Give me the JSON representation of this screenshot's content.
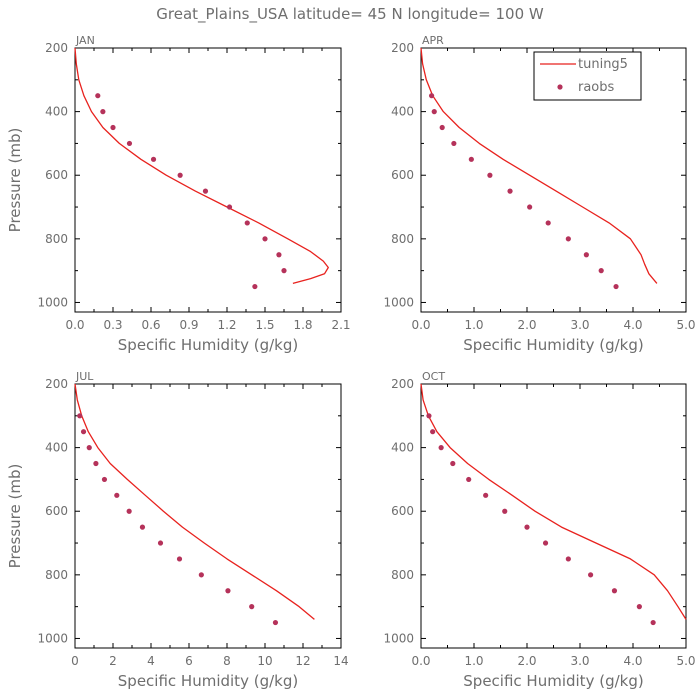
{
  "title": "Great_Plains_USA   latitude= 45 N longitude= 100 W",
  "legend": {
    "model_label": "tuning5",
    "obs_label": "raobs"
  },
  "colors": {
    "model_line": "#e8221e",
    "obs_marker": "#b5325a",
    "axis": "#000000",
    "text": "#6e6e6e"
  },
  "chart_data": [
    {
      "type": "line",
      "panel": "JAN",
      "xlabel": "Specific Humidity (g/kg)",
      "ylabel": "Pressure (mb)",
      "xlim": [
        0,
        2.1
      ],
      "ylim": [
        1030,
        200
      ],
      "xticks": [
        "0.0",
        "0.3",
        "0.6",
        "0.9",
        "1.2",
        "1.5",
        "1.8",
        "2.1"
      ],
      "xtick_values": [
        0,
        0.3,
        0.6,
        0.9,
        1.2,
        1.5,
        1.8,
        2.1
      ],
      "yticks": [
        "200",
        "400",
        "600",
        "800",
        "1000"
      ],
      "ytick_values": [
        200,
        400,
        600,
        800,
        1000
      ],
      "series": [
        {
          "name": "tuning5",
          "kind": "line",
          "x": [
            0.0,
            0.01,
            0.03,
            0.07,
            0.13,
            0.22,
            0.35,
            0.52,
            0.72,
            0.95,
            1.2,
            1.45,
            1.68,
            1.86,
            1.96,
            2.0,
            1.97,
            1.86,
            1.72
          ],
          "y": [
            200,
            250,
            300,
            350,
            400,
            450,
            500,
            550,
            600,
            650,
            700,
            750,
            800,
            840,
            870,
            890,
            910,
            925,
            940
          ]
        },
        {
          "name": "raobs",
          "kind": "scatter",
          "x": [
            0.18,
            0.22,
            0.3,
            0.43,
            0.62,
            0.83,
            1.03,
            1.22,
            1.36,
            1.5,
            1.61,
            1.65,
            1.42
          ],
          "y": [
            350,
            400,
            450,
            500,
            550,
            600,
            650,
            700,
            750,
            800,
            850,
            900,
            950
          ]
        }
      ]
    },
    {
      "type": "line",
      "panel": "APR",
      "xlabel": "Specific Humidity (g/kg)",
      "ylabel": "",
      "xlim": [
        0,
        5.0
      ],
      "ylim": [
        1030,
        200
      ],
      "xticks": [
        "0.0",
        "1.0",
        "2.0",
        "3.0",
        "4.0",
        "5.0"
      ],
      "xtick_values": [
        0,
        1,
        2,
        3,
        4,
        5
      ],
      "yticks": [
        "200",
        "400",
        "600",
        "800",
        "1000"
      ],
      "ytick_values": [
        200,
        400,
        600,
        800,
        1000
      ],
      "series": [
        {
          "name": "tuning5",
          "kind": "line",
          "x": [
            0.0,
            0.03,
            0.1,
            0.22,
            0.42,
            0.72,
            1.1,
            1.55,
            2.05,
            2.55,
            3.05,
            3.55,
            3.95,
            4.15,
            4.22,
            4.3,
            4.45
          ],
          "y": [
            200,
            250,
            300,
            350,
            400,
            450,
            500,
            550,
            600,
            650,
            700,
            750,
            800,
            850,
            880,
            910,
            940
          ]
        },
        {
          "name": "raobs",
          "kind": "scatter",
          "x": [
            0.2,
            0.25,
            0.4,
            0.62,
            0.95,
            1.3,
            1.68,
            2.05,
            2.4,
            2.78,
            3.12,
            3.4,
            3.68
          ],
          "y": [
            350,
            400,
            450,
            500,
            550,
            600,
            650,
            700,
            750,
            800,
            850,
            900,
            950
          ]
        }
      ]
    },
    {
      "type": "line",
      "panel": "JUL",
      "xlabel": "Specific Humidity (g/kg)",
      "ylabel": "Pressure (mb)",
      "xlim": [
        0,
        14
      ],
      "ylim": [
        1030,
        200
      ],
      "xticks": [
        "0",
        "2",
        "4",
        "6",
        "8",
        "10",
        "12",
        "14"
      ],
      "xtick_values": [
        0,
        2,
        4,
        6,
        8,
        10,
        12,
        14
      ],
      "yticks": [
        "200",
        "400",
        "600",
        "800",
        "1000"
      ],
      "ytick_values": [
        200,
        400,
        600,
        800,
        1000
      ],
      "series": [
        {
          "name": "tuning5",
          "kind": "line",
          "x": [
            0.0,
            0.12,
            0.35,
            0.7,
            1.2,
            1.85,
            2.75,
            3.7,
            4.65,
            5.65,
            6.8,
            8.0,
            9.3,
            10.6,
            11.8,
            12.6
          ],
          "y": [
            200,
            250,
            300,
            350,
            400,
            450,
            500,
            550,
            600,
            650,
            700,
            750,
            800,
            850,
            900,
            940
          ]
        },
        {
          "name": "raobs",
          "kind": "scatter",
          "x": [
            0.25,
            0.45,
            0.75,
            1.1,
            1.55,
            2.2,
            2.85,
            3.55,
            4.5,
            5.5,
            6.65,
            8.05,
            9.3,
            10.55
          ],
          "y": [
            300,
            350,
            400,
            450,
            500,
            550,
            600,
            650,
            700,
            750,
            800,
            850,
            900,
            950
          ]
        }
      ]
    },
    {
      "type": "line",
      "panel": "OCT",
      "xlabel": "Specific Humidity (g/kg)",
      "ylabel": "",
      "xlim": [
        0,
        5.0
      ],
      "ylim": [
        1030,
        200
      ],
      "xticks": [
        "0.0",
        "1.0",
        "2.0",
        "3.0",
        "4.0",
        "5.0"
      ],
      "xtick_values": [
        0,
        1,
        2,
        3,
        4,
        5
      ],
      "yticks": [
        "200",
        "400",
        "600",
        "800",
        "1000"
      ],
      "ytick_values": [
        200,
        400,
        600,
        800,
        1000
      ],
      "series": [
        {
          "name": "tuning5",
          "kind": "line",
          "x": [
            0.0,
            0.04,
            0.14,
            0.3,
            0.55,
            0.88,
            1.28,
            1.72,
            2.15,
            2.65,
            3.3,
            3.95,
            4.4,
            4.65,
            4.85,
            5.0
          ],
          "y": [
            200,
            250,
            300,
            350,
            400,
            450,
            500,
            550,
            600,
            650,
            700,
            750,
            800,
            850,
            900,
            940
          ]
        },
        {
          "name": "raobs",
          "kind": "scatter",
          "x": [
            0.15,
            0.22,
            0.38,
            0.6,
            0.9,
            1.22,
            1.58,
            2.0,
            2.35,
            2.78,
            3.2,
            3.65,
            4.12,
            4.38
          ],
          "y": [
            300,
            350,
            400,
            450,
            500,
            550,
            600,
            650,
            700,
            750,
            800,
            850,
            900,
            950
          ]
        }
      ]
    }
  ]
}
